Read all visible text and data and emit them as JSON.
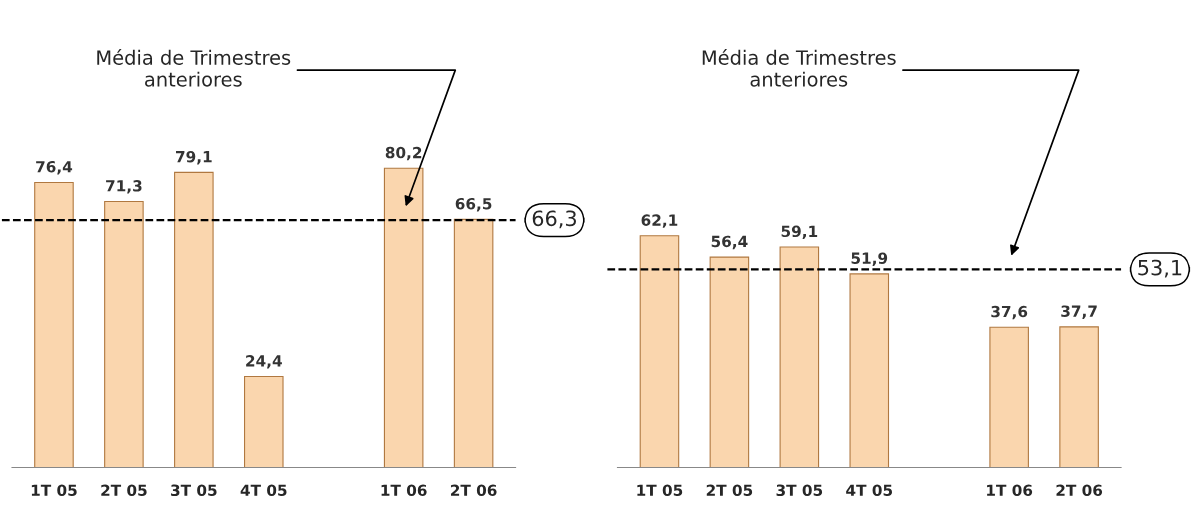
{
  "chart_data": [
    {
      "type": "bar",
      "categories": [
        "1T 05",
        "2T 05",
        "3T 05",
        "4T 05",
        null,
        "1T 06",
        "2T 06"
      ],
      "values": [
        76.4,
        71.3,
        79.1,
        24.4,
        null,
        80.2,
        66.5
      ],
      "value_labels": [
        "76,4",
        "71,3",
        "79,1",
        "24,4",
        null,
        "80,2",
        "66,5"
      ],
      "color": "#fad6ae",
      "tick_labels": "x",
      "ref_lines": [
        {
          "axis": "y",
          "value": 66.3,
          "label": "66,3",
          "line_style": "dashed",
          "color": "#000000"
        }
      ],
      "annotations": [
        "Média de Trimestres\nanteriores"
      ]
    },
    {
      "type": "bar",
      "categories": [
        "1T 05",
        "2T 05",
        "3T 05",
        "4T 05",
        null,
        "1T 06",
        "2T 06"
      ],
      "values": [
        62.1,
        56.4,
        59.1,
        51.9,
        null,
        37.6,
        37.7
      ],
      "value_labels": [
        "62,1",
        "56,4",
        "59,1",
        "51,9",
        null,
        "37,6",
        "37,7"
      ],
      "color": "#fad6ae",
      "tick_labels": "x",
      "ref_lines": [
        {
          "axis": "y",
          "value": 53.1,
          "label": "53,1",
          "line_style": "dashed",
          "color": "#000000"
        }
      ],
      "annotations": [
        "Média de Trimestres\nanteriores"
      ]
    }
  ]
}
